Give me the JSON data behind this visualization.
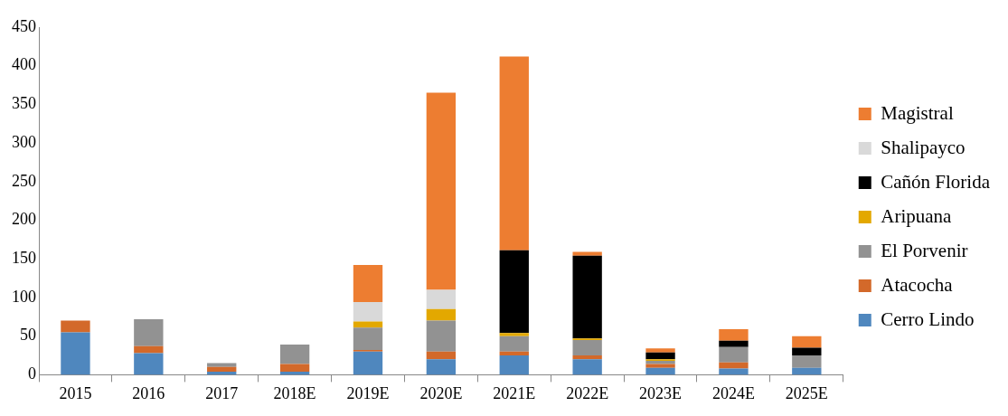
{
  "chart_data": {
    "type": "bar",
    "stacked": true,
    "categories": [
      "2015",
      "2016",
      "2017",
      "2018E",
      "2019E",
      "2020E",
      "2021E",
      "2022E",
      "2023E",
      "2024E",
      "2025E"
    ],
    "series": [
      {
        "name": "Cerro Lindo",
        "color": "#4f87be",
        "values": [
          55,
          28,
          4,
          4,
          30,
          20,
          25,
          20,
          9,
          8,
          9
        ]
      },
      {
        "name": "Atacocha",
        "color": "#d3692a",
        "values": [
          15,
          9,
          6,
          10,
          2,
          10,
          5,
          5,
          5,
          8,
          0
        ]
      },
      {
        "name": "El Porvenir",
        "color": "#929292",
        "values": [
          0,
          35,
          5,
          25,
          29,
          40,
          20,
          20,
          4,
          20,
          16
        ]
      },
      {
        "name": "Aripuana",
        "color": "#e3a800",
        "values": [
          0,
          0,
          0,
          0,
          8,
          15,
          4,
          2,
          2,
          0,
          0
        ]
      },
      {
        "name": "Cañón Florida",
        "color": "#000000",
        "values": [
          0,
          0,
          0,
          0,
          0,
          0,
          107,
          107,
          9,
          8,
          10
        ]
      },
      {
        "name": "Shalipayco",
        "color": "#d9d9d9",
        "values": [
          0,
          0,
          0,
          0,
          25,
          25,
          0,
          0,
          0,
          0,
          0
        ]
      },
      {
        "name": "Magistral",
        "color": "#ed7d31",
        "values": [
          0,
          0,
          0,
          0,
          48,
          255,
          251,
          5,
          5,
          15,
          15
        ]
      }
    ],
    "ylim": [
      0,
      450
    ],
    "yticks": [
      0,
      50,
      100,
      150,
      200,
      250,
      300,
      350,
      400,
      450
    ],
    "legend": "right"
  }
}
